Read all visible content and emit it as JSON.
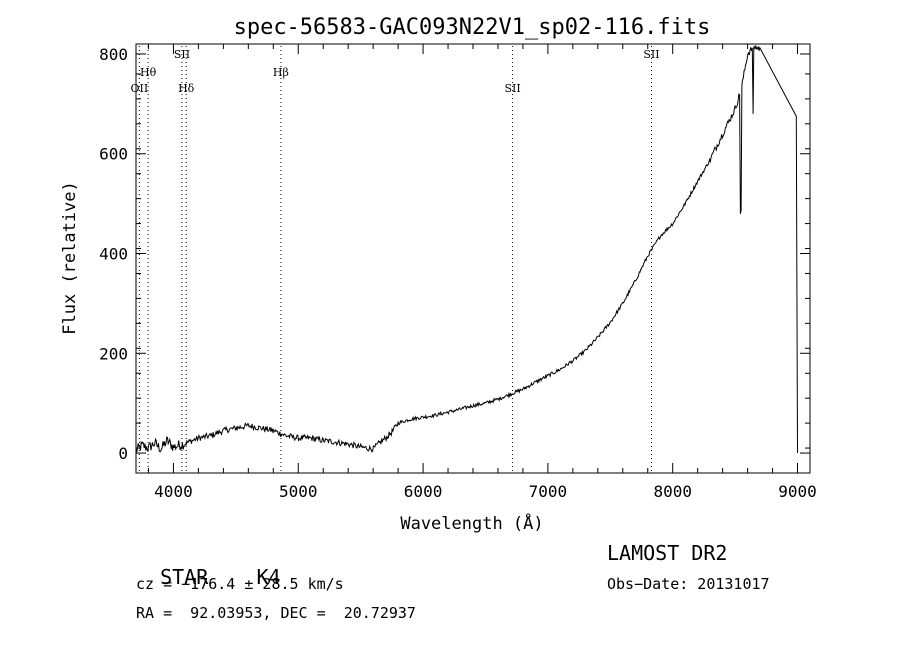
{
  "chart_data": {
    "type": "line",
    "title": "spec-56583-GAC093N22V1_sp02-116.fits",
    "xlabel": "Wavelength (Å)",
    "ylabel": "Flux (relative)",
    "xlim": [
      3700,
      9100
    ],
    "ylim": [
      -40,
      820
    ],
    "x_ticks": [
      4000,
      5000,
      6000,
      7000,
      8000,
      9000
    ],
    "y_ticks": [
      0,
      200,
      400,
      600,
      800
    ],
    "grid": false,
    "series": [
      {
        "x": [
          3700,
          3750,
          3800,
          3850,
          3900,
          3950,
          4000,
          4100,
          4200,
          4300,
          4400,
          4500,
          4600,
          4700,
          4800,
          4900,
          5000,
          5100,
          5200,
          5300,
          5400,
          5500,
          5600,
          5650,
          5700,
          5750,
          5800,
          5900,
          6000,
          6100,
          6200,
          6300,
          6400,
          6500,
          6600,
          6700,
          6800,
          6900,
          7000,
          7100,
          7200,
          7300,
          7400,
          7500,
          7600,
          7700,
          7800,
          7900,
          8000,
          8100,
          8200,
          8300,
          8400,
          8500,
          8550,
          8600,
          8650,
          8700,
          8990,
          9000
        ],
        "values": [
          5,
          15,
          10,
          20,
          8,
          25,
          12,
          20,
          30,
          35,
          45,
          50,
          55,
          50,
          45,
          35,
          30,
          30,
          25,
          22,
          18,
          12,
          8,
          20,
          30,
          42,
          60,
          68,
          72,
          76,
          82,
          88,
          95,
          100,
          108,
          118,
          128,
          142,
          155,
          168,
          185,
          205,
          232,
          262,
          300,
          345,
          395,
          435,
          460,
          500,
          545,
          588,
          640,
          690,
          730,
          800,
          815,
          810,
          675,
          0
        ]
      }
    ],
    "annotations": [
      {
        "label": "OII",
        "x": 3727,
        "line": true
      },
      {
        "label": "Hθ",
        "x": 3797,
        "line": true
      },
      {
        "label": "SII",
        "x": 4068,
        "line": true
      },
      {
        "label": "Hδ",
        "x": 4102,
        "line": true
      },
      {
        "label": "Hβ",
        "x": 4861,
        "line": true
      },
      {
        "label": "SII",
        "x": 6717,
        "line": true
      },
      {
        "label": "SII",
        "x": 7830,
        "line": true
      }
    ]
  },
  "info": {
    "class": "STAR",
    "subclass": "K4",
    "survey": "LAMOST DR2",
    "cz": "cz = −176.4 ± 28.5 km/s",
    "obs_date": "Obs−Date: 20131017",
    "radec": "RA =  92.03953, DEC =  20.72937"
  }
}
